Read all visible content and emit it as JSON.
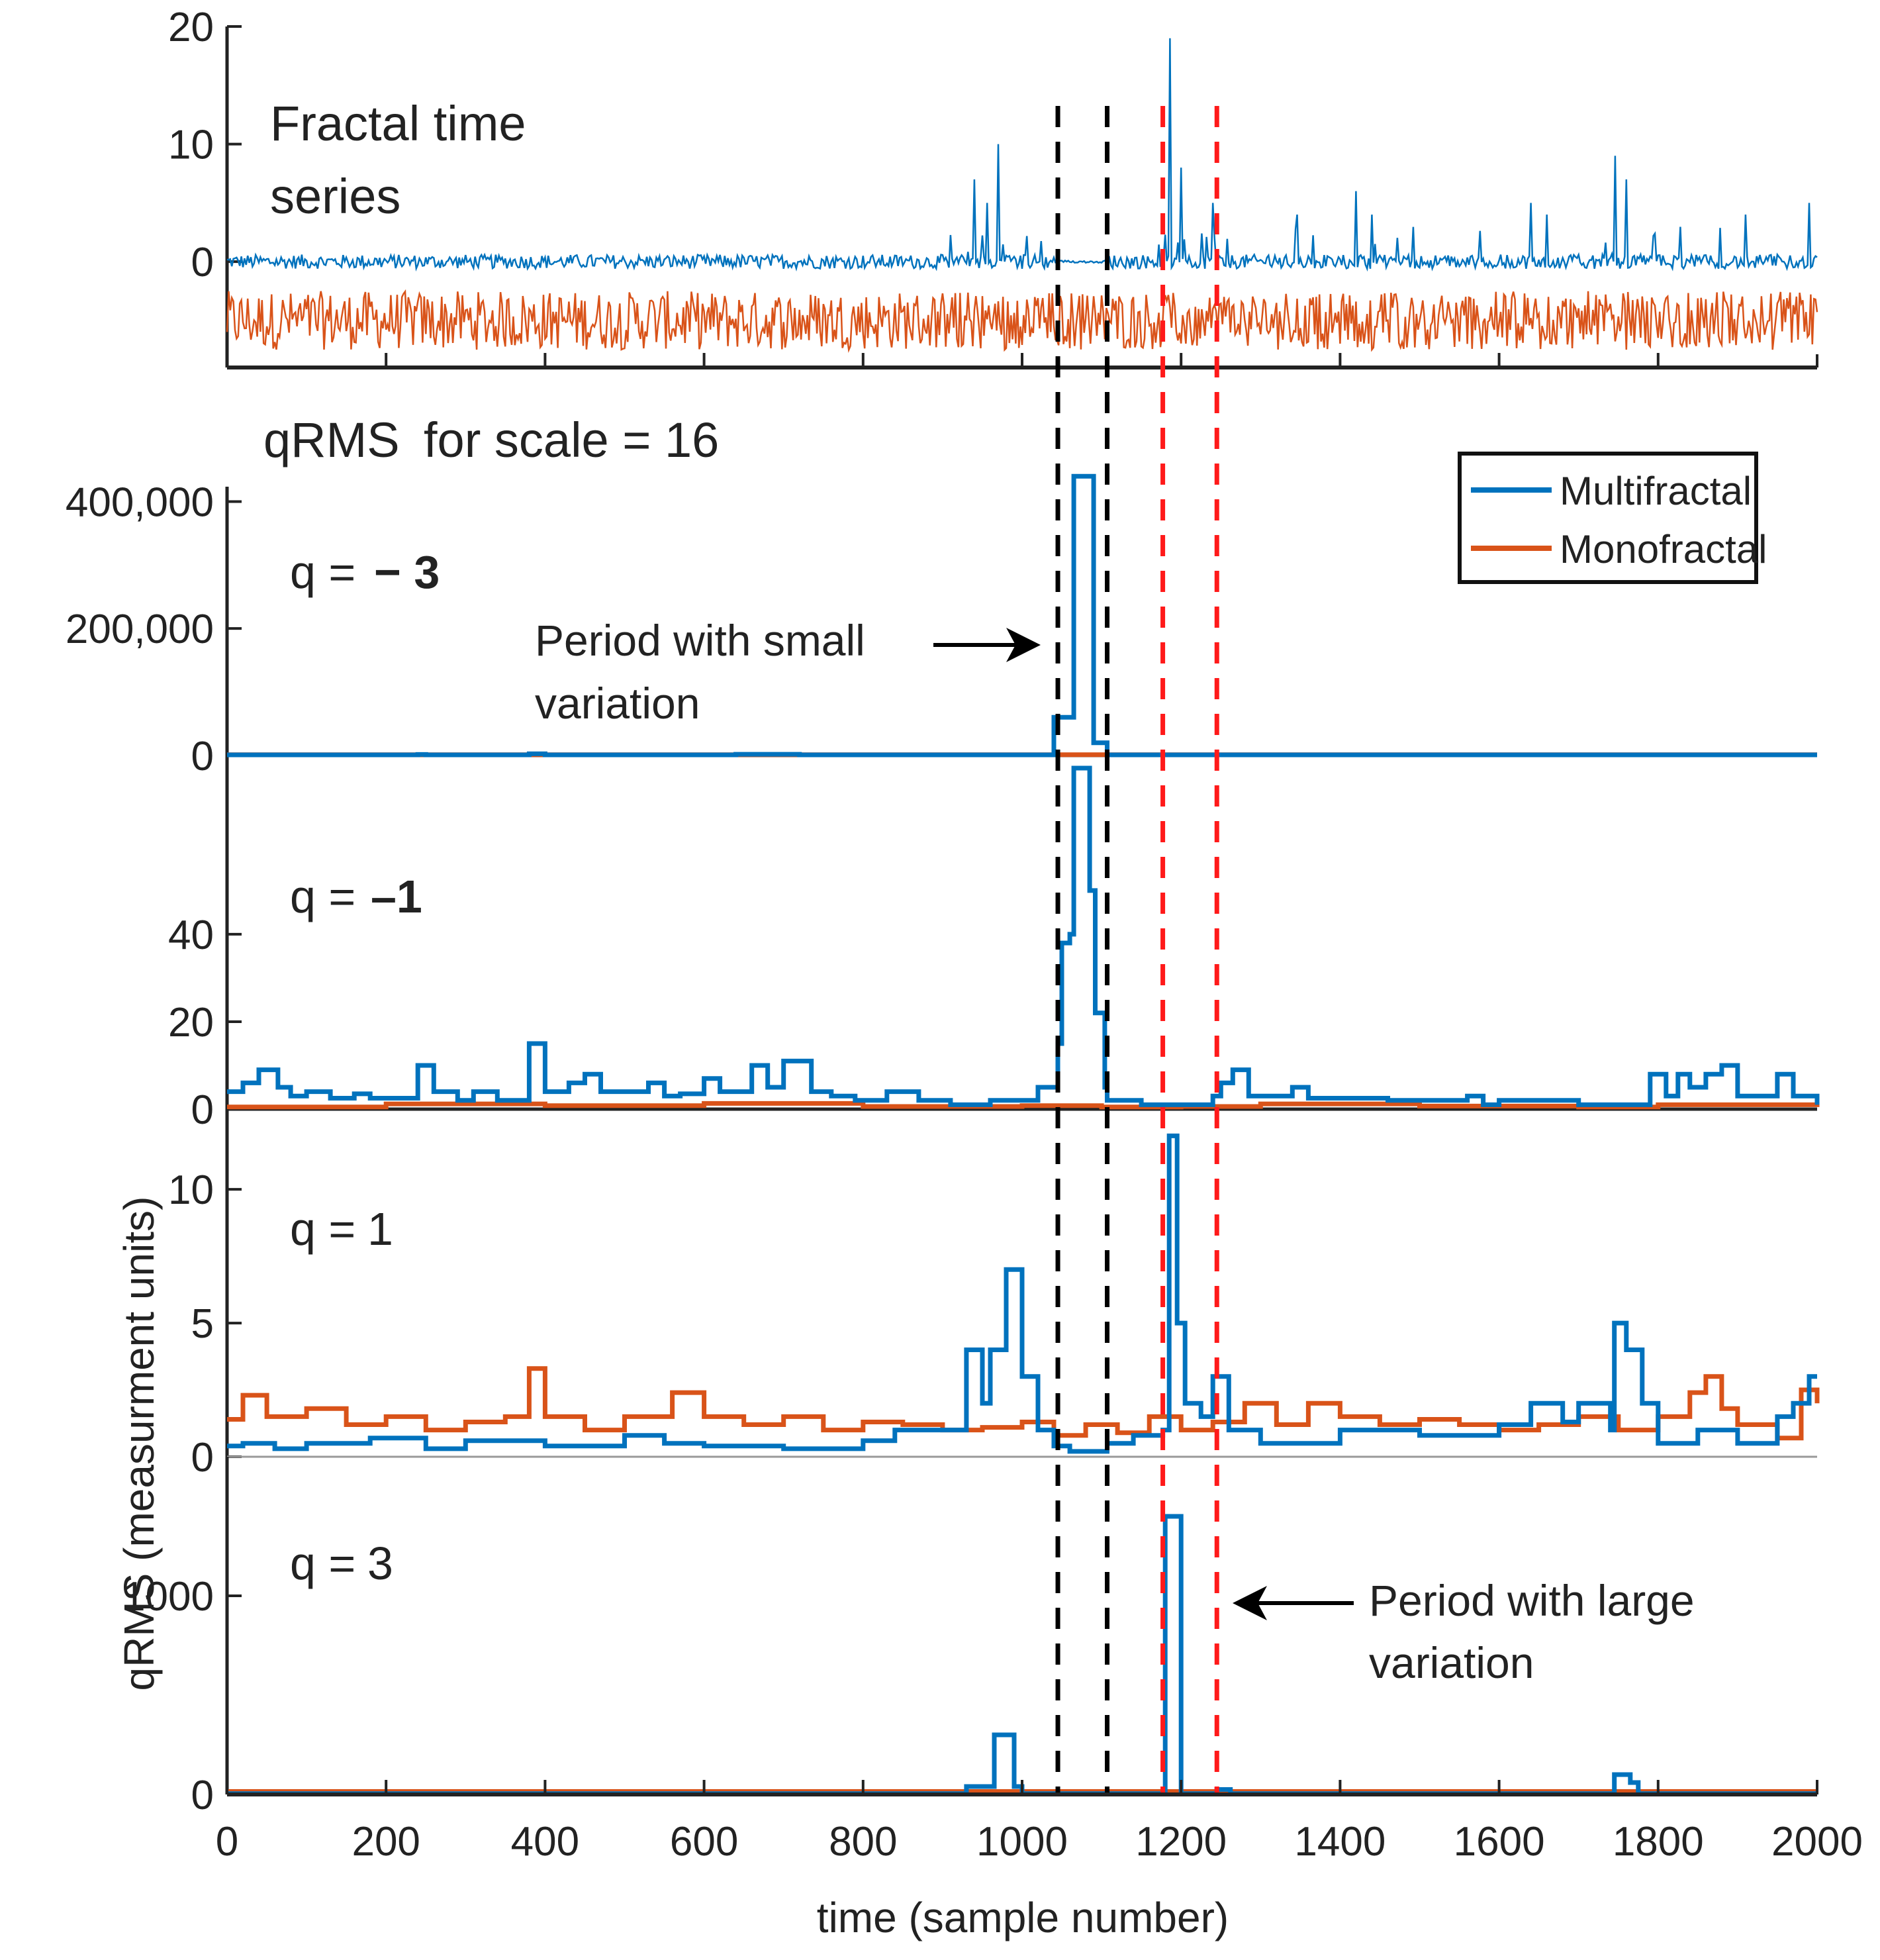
{
  "chart_data": {
    "type": "line",
    "xlabel": "time (sample number)",
    "ylabel": "qRMS (measurment units)",
    "xlim": [
      0,
      2000
    ],
    "x_ticks": [
      "0",
      "200",
      "400",
      "600",
      "800",
      "1000",
      "1200",
      "1400",
      "1600",
      "1800",
      "2000"
    ],
    "legend": {
      "position": "top-right",
      "entries": [
        {
          "name": "Multifractal",
          "color": "#0072BD"
        },
        {
          "name": "Monofractal",
          "color": "#D95319"
        }
      ]
    },
    "series_colors": {
      "multifractal": "#0072BD",
      "monofractal": "#D95319"
    },
    "reference_lines": [
      {
        "x": 1045,
        "color": "#000000",
        "style": "dashed"
      },
      {
        "x": 1107,
        "color": "#000000",
        "style": "dashed"
      },
      {
        "x": 1177,
        "color": "#ff1a1a",
        "style": "dashed"
      },
      {
        "x": 1245,
        "color": "#ff1a1a",
        "style": "dashed"
      }
    ],
    "panels": [
      {
        "id": "timeseries",
        "label_line1": "Fractal time",
        "label_line2": "series",
        "ylim": [
          -9,
          20
        ],
        "y_ticks": [
          {
            "value": 20,
            "label": "20"
          },
          {
            "value": 10,
            "label": "10"
          },
          {
            "value": 0,
            "label": "0"
          }
        ],
        "multifractal_baseline": 0,
        "monofractal_offset": -5,
        "multifractal_spikes": [
          [
            940,
            7
          ],
          [
            955,
            5
          ],
          [
            970,
            10
          ],
          [
            1185,
            19
          ],
          [
            1200,
            8
          ],
          [
            1240,
            5
          ],
          [
            1345,
            4
          ],
          [
            1420,
            6
          ],
          [
            1440,
            4
          ],
          [
            1640,
            5
          ],
          [
            1660,
            4
          ],
          [
            1745,
            9
          ],
          [
            1760,
            7
          ],
          [
            1910,
            4
          ],
          [
            1990,
            5
          ]
        ]
      },
      {
        "id": "q_minus3",
        "label_prefix": "q = ",
        "label_value": "− 3",
        "ylim": [
          -20000,
          460000
        ],
        "y_ticks": [
          {
            "value": 400000,
            "label": "400,000"
          },
          {
            "value": 200000,
            "label": "200,000"
          },
          {
            "value": 0,
            "label": "0"
          }
        ],
        "multifractal": [
          [
            0,
            900
          ],
          [
            240,
            1500
          ],
          [
            250,
            900
          ],
          [
            380,
            2500
          ],
          [
            400,
            900
          ],
          [
            640,
            1800
          ],
          [
            720,
            900
          ],
          [
            1040,
            60000
          ],
          [
            1060,
            60000
          ],
          [
            1065,
            440000
          ],
          [
            1085,
            440000
          ],
          [
            1090,
            20000
          ],
          [
            1100,
            20000
          ],
          [
            1107,
            900
          ],
          [
            2000,
            900
          ]
        ],
        "monofractal": [
          [
            0,
            1200
          ],
          [
            2000,
            1200
          ]
        ]
      },
      {
        "id": "q_minus1",
        "label_prefix": "q = ",
        "label_value": "–1",
        "ylim": [
          0,
          78
        ],
        "y_ticks": [
          {
            "value": 40,
            "label": "40"
          },
          {
            "value": 20,
            "label": "20"
          },
          {
            "value": 0,
            "label": "0"
          }
        ],
        "multifractal": [
          [
            0,
            4
          ],
          [
            20,
            6
          ],
          [
            40,
            9
          ],
          [
            64,
            5
          ],
          [
            80,
            3
          ],
          [
            100,
            4
          ],
          [
            130,
            2.5
          ],
          [
            160,
            3.5
          ],
          [
            180,
            2.5
          ],
          [
            240,
            10
          ],
          [
            260,
            4
          ],
          [
            290,
            2
          ],
          [
            310,
            4
          ],
          [
            340,
            2
          ],
          [
            380,
            15
          ],
          [
            400,
            4
          ],
          [
            430,
            6
          ],
          [
            450,
            8
          ],
          [
            470,
            4
          ],
          [
            530,
            6
          ],
          [
            550,
            3
          ],
          [
            570,
            3.5
          ],
          [
            600,
            7
          ],
          [
            620,
            4
          ],
          [
            660,
            10
          ],
          [
            680,
            5
          ],
          [
            700,
            11
          ],
          [
            735,
            4
          ],
          [
            760,
            3
          ],
          [
            790,
            2
          ],
          [
            830,
            4
          ],
          [
            870,
            2
          ],
          [
            910,
            1
          ],
          [
            960,
            2
          ],
          [
            1020,
            5
          ],
          [
            1045,
            15
          ],
          [
            1050,
            38
          ],
          [
            1060,
            40
          ],
          [
            1065,
            78
          ],
          [
            1085,
            50
          ],
          [
            1092,
            22
          ],
          [
            1104,
            5
          ],
          [
            1107,
            2
          ],
          [
            1150,
            1
          ],
          [
            1240,
            3
          ],
          [
            1250,
            6
          ],
          [
            1265,
            9
          ],
          [
            1285,
            3
          ],
          [
            1340,
            5
          ],
          [
            1360,
            2.5
          ],
          [
            1460,
            2
          ],
          [
            1560,
            3
          ],
          [
            1580,
            1
          ],
          [
            1600,
            2
          ],
          [
            1700,
            1
          ],
          [
            1790,
            8
          ],
          [
            1810,
            3
          ],
          [
            1825,
            8
          ],
          [
            1840,
            5
          ],
          [
            1860,
            8
          ],
          [
            1880,
            10
          ],
          [
            1900,
            3
          ],
          [
            1950,
            8
          ],
          [
            1970,
            3
          ],
          [
            2000,
            1
          ]
        ],
        "monofractal": [
          [
            0,
            0.5
          ],
          [
            200,
            1.2
          ],
          [
            400,
            0.8
          ],
          [
            600,
            1.3
          ],
          [
            800,
            0.6
          ],
          [
            1000,
            0.8
          ],
          [
            1100,
            0.5
          ],
          [
            1200,
            0.6
          ],
          [
            1300,
            1.2
          ],
          [
            1500,
            0.7
          ],
          [
            1700,
            0.5
          ],
          [
            1800,
            1.0
          ],
          [
            2000,
            1.3
          ]
        ]
      },
      {
        "id": "q_1",
        "label_prefix": "q = ",
        "label_value": "1",
        "ylim": [
          0,
          13
        ],
        "y_ticks": [
          {
            "value": 10,
            "label": "10"
          },
          {
            "value": 5,
            "label": "5"
          },
          {
            "value": 0,
            "label": "0"
          }
        ],
        "multifractal": [
          [
            0,
            0.4
          ],
          [
            20,
            0.5
          ],
          [
            60,
            0.3
          ],
          [
            100,
            0.5
          ],
          [
            180,
            0.7
          ],
          [
            250,
            0.3
          ],
          [
            300,
            0.6
          ],
          [
            400,
            0.4
          ],
          [
            500,
            0.8
          ],
          [
            550,
            0.5
          ],
          [
            600,
            0.4
          ],
          [
            700,
            0.3
          ],
          [
            800,
            0.6
          ],
          [
            840,
            1.0
          ],
          [
            930,
            4
          ],
          [
            950,
            2
          ],
          [
            960,
            4
          ],
          [
            980,
            7
          ],
          [
            1000,
            3
          ],
          [
            1020,
            1
          ],
          [
            1040,
            0.4
          ],
          [
            1060,
            0.2
          ],
          [
            1107,
            0.5
          ],
          [
            1140,
            0.8
          ],
          [
            1177,
            1.0
          ],
          [
            1185,
            12
          ],
          [
            1195,
            5
          ],
          [
            1205,
            2
          ],
          [
            1225,
            1.5
          ],
          [
            1240,
            3
          ],
          [
            1260,
            1
          ],
          [
            1300,
            0.5
          ],
          [
            1400,
            1
          ],
          [
            1500,
            0.8
          ],
          [
            1600,
            1.2
          ],
          [
            1640,
            2
          ],
          [
            1680,
            1.3
          ],
          [
            1700,
            2
          ],
          [
            1740,
            1
          ],
          [
            1745,
            5
          ],
          [
            1760,
            4
          ],
          [
            1780,
            2
          ],
          [
            1800,
            0.5
          ],
          [
            1850,
            1
          ],
          [
            1900,
            0.5
          ],
          [
            1950,
            1.5
          ],
          [
            1970,
            2
          ],
          [
            1990,
            3
          ],
          [
            2000,
            3
          ]
        ],
        "monofractal": [
          [
            0,
            1.4
          ],
          [
            20,
            2.3
          ],
          [
            50,
            1.5
          ],
          [
            100,
            1.8
          ],
          [
            150,
            1.2
          ],
          [
            200,
            1.5
          ],
          [
            250,
            1.0
          ],
          [
            300,
            1.3
          ],
          [
            350,
            1.5
          ],
          [
            380,
            3.3
          ],
          [
            400,
            1.5
          ],
          [
            450,
            1.0
          ],
          [
            500,
            1.5
          ],
          [
            560,
            2.4
          ],
          [
            600,
            1.5
          ],
          [
            650,
            1.2
          ],
          [
            700,
            1.5
          ],
          [
            750,
            1.0
          ],
          [
            800,
            1.3
          ],
          [
            850,
            1.2
          ],
          [
            900,
            1.0
          ],
          [
            950,
            1.1
          ],
          [
            1000,
            1.3
          ],
          [
            1040,
            0.8
          ],
          [
            1080,
            1.2
          ],
          [
            1120,
            0.9
          ],
          [
            1160,
            1.5
          ],
          [
            1200,
            1.0
          ],
          [
            1240,
            1.3
          ],
          [
            1280,
            2.0
          ],
          [
            1320,
            1.2
          ],
          [
            1360,
            2.0
          ],
          [
            1400,
            1.5
          ],
          [
            1450,
            1.2
          ],
          [
            1500,
            1.4
          ],
          [
            1550,
            1.2
          ],
          [
            1600,
            1.0
          ],
          [
            1650,
            1.2
          ],
          [
            1700,
            1.5
          ],
          [
            1750,
            1.0
          ],
          [
            1800,
            1.5
          ],
          [
            1840,
            2.4
          ],
          [
            1860,
            3.0
          ],
          [
            1880,
            1.8
          ],
          [
            1900,
            1.2
          ],
          [
            1950,
            0.7
          ],
          [
            1980,
            2.5
          ],
          [
            2000,
            2.0
          ]
        ]
      },
      {
        "id": "q_3",
        "label_prefix": "q = ",
        "label_value": "3",
        "ylim": [
          0,
          1700
        ],
        "y_ticks": [
          {
            "value": 1000,
            "label": "1000"
          },
          {
            "value": 0,
            "label": "0"
          }
        ],
        "multifractal": [
          [
            0,
            4
          ],
          [
            900,
            4
          ],
          [
            930,
            40
          ],
          [
            960,
            40
          ],
          [
            965,
            300
          ],
          [
            985,
            300
          ],
          [
            990,
            40
          ],
          [
            1000,
            4
          ],
          [
            1175,
            4
          ],
          [
            1180,
            1400
          ],
          [
            1198,
            1400
          ],
          [
            1200,
            4
          ],
          [
            1240,
            4
          ],
          [
            1245,
            25
          ],
          [
            1262,
            4
          ],
          [
            1740,
            4
          ],
          [
            1745,
            100
          ],
          [
            1765,
            60
          ],
          [
            1775,
            4
          ],
          [
            2000,
            4
          ]
        ],
        "monofractal": [
          [
            0,
            15
          ],
          [
            2000,
            15
          ]
        ]
      }
    ],
    "title_text": "qRMS",
    "scale_text": "for scale =  16",
    "annotation_small_line1": "Period with small",
    "annotation_small_line2": "variation",
    "annotation_large_line1": "Period with large",
    "annotation_large_line2": "variation"
  }
}
